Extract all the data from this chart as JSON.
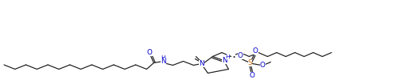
{
  "bg_color": "#ffffff",
  "line_color": "#1a1a1a",
  "atom_colors": {
    "O": "#0000cc",
    "N": "#0000cc",
    "S": "#cc6600",
    "H": "#0000cc"
  },
  "figsize": [
    4.98,
    1.05
  ],
  "dpi": 100
}
